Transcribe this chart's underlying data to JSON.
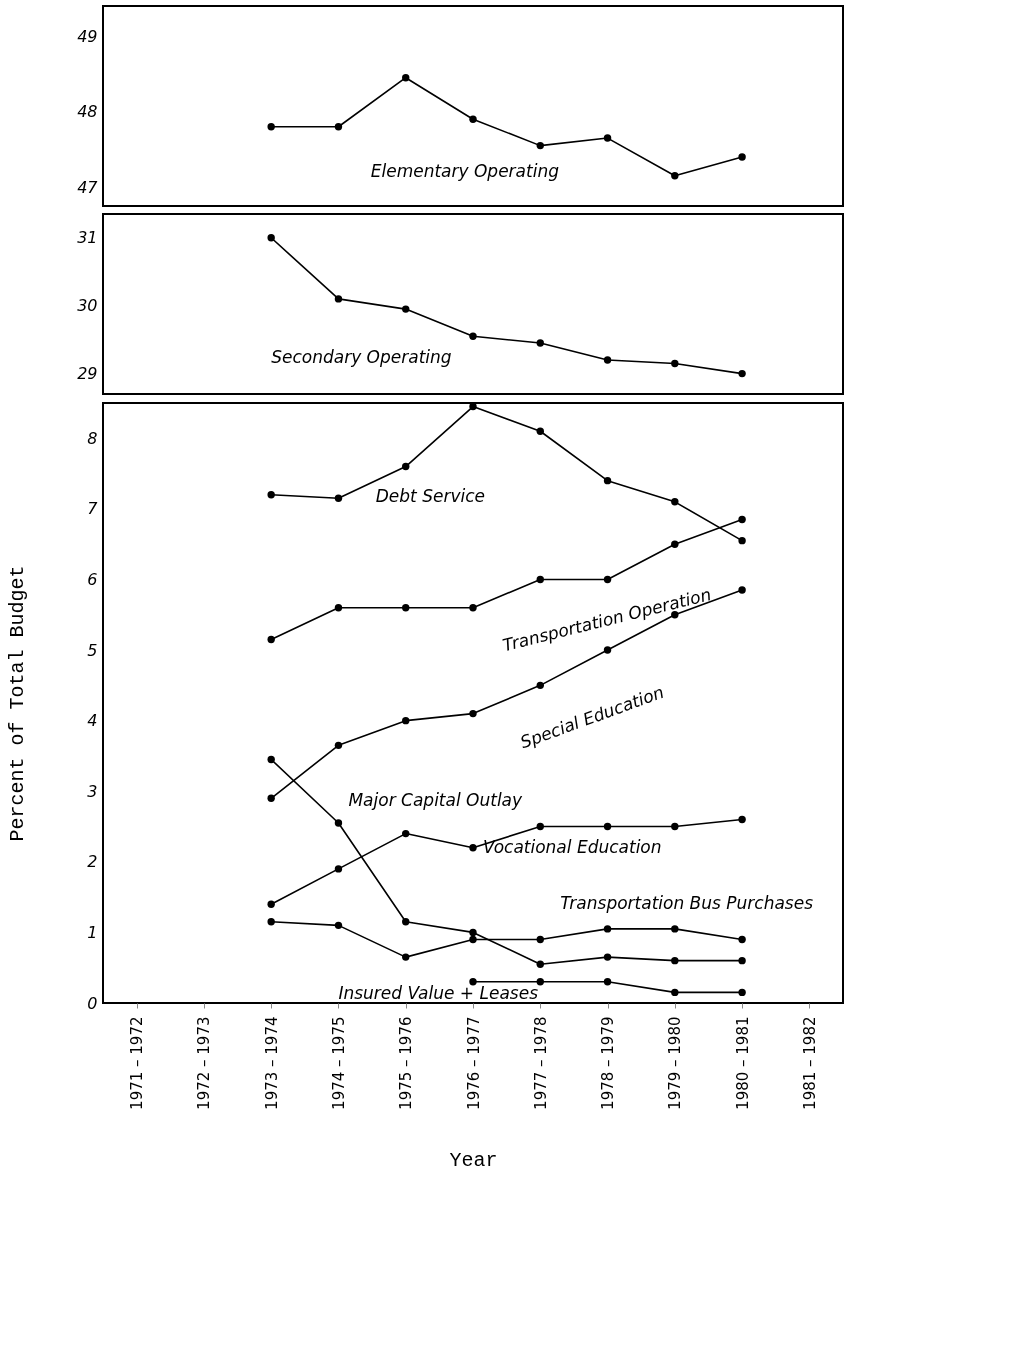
{
  "chart_data": [
    {
      "type": "line",
      "categories": [
        "1971 – 1972",
        "1972 – 1973",
        "1973 – 1974",
        "1974 – 1975",
        "1975 – 1976",
        "1976 – 1977",
        "1977 – 1978",
        "1978 – 1979",
        "1979 – 1980",
        "1980 – 1981",
        "1981 – 1982"
      ],
      "ylim": [
        46.75,
        49.4
      ],
      "yticks": [
        47,
        48,
        49
      ],
      "grid": false,
      "legend": false,
      "marker": "circle",
      "line_style": "solid",
      "tick_labels": "y",
      "series": [
        {
          "name": "Elementary Operating",
          "color": "#000000",
          "values": [
            null,
            null,
            47.8,
            47.8,
            48.45,
            47.9,
            47.55,
            47.65,
            47.15,
            47.4,
            null
          ]
        }
      ]
    },
    {
      "type": "line",
      "categories": [
        "1971 – 1972",
        "1972 – 1973",
        "1973 – 1974",
        "1974 – 1975",
        "1975 – 1976",
        "1976 – 1977",
        "1977 – 1978",
        "1978 – 1979",
        "1979 – 1980",
        "1980 – 1981",
        "1981 – 1982"
      ],
      "ylim": [
        28.7,
        31.35
      ],
      "yticks": [
        29,
        30,
        31
      ],
      "grid": false,
      "legend": false,
      "marker": "circle",
      "line_style": "solid",
      "tick_labels": "y",
      "series": [
        {
          "name": "Secondary Operating",
          "color": "#000000",
          "values": [
            null,
            null,
            31.0,
            30.1,
            29.95,
            29.55,
            29.45,
            29.2,
            29.15,
            29.0,
            null
          ]
        }
      ]
    },
    {
      "type": "line",
      "xlabel": "Year",
      "ylabel": "Percent of Total Budget",
      "categories": [
        "1971 – 1972",
        "1972 – 1973",
        "1973 – 1974",
        "1974 – 1975",
        "1975 – 1976",
        "1976 – 1977",
        "1977 – 1978",
        "1978 – 1979",
        "1979 – 1980",
        "1980 – 1981",
        "1981 – 1982"
      ],
      "ylim": [
        0,
        8.5
      ],
      "yticks": [
        0,
        1,
        2,
        3,
        4,
        5,
        6,
        7,
        8
      ],
      "grid": false,
      "legend": false,
      "marker": "circle",
      "line_style": "solid",
      "series": [
        {
          "name": "Debt Service",
          "color": "#000000",
          "values": [
            null,
            null,
            7.2,
            7.15,
            7.6,
            8.45,
            8.1,
            7.4,
            7.1,
            6.55,
            null
          ]
        },
        {
          "name": "Transportation Operation",
          "color": "#000000",
          "values": [
            null,
            null,
            5.15,
            5.6,
            5.6,
            5.6,
            6.0,
            6.0,
            6.5,
            6.85,
            null
          ]
        },
        {
          "name": "Special Education",
          "color": "#000000",
          "values": [
            null,
            null,
            2.9,
            3.65,
            4.0,
            4.1,
            4.5,
            5.0,
            5.5,
            5.85,
            null
          ]
        },
        {
          "name": "Major Capital Outlay",
          "color": "#000000",
          "values": [
            null,
            null,
            3.45,
            2.55,
            1.15,
            1.0,
            0.55,
            0.65,
            0.6,
            0.6,
            null
          ]
        },
        {
          "name": "Vocational Education",
          "color": "#000000",
          "values": [
            null,
            null,
            1.4,
            1.9,
            2.4,
            2.2,
            2.5,
            2.5,
            2.5,
            2.6,
            null
          ]
        },
        {
          "name": "Transportation Bus Purchases",
          "color": "#000000",
          "values": [
            null,
            null,
            1.15,
            1.1,
            0.65,
            0.9,
            0.9,
            1.05,
            1.05,
            0.9,
            null
          ]
        },
        {
          "name": "Insured Value + Leases",
          "color": "#000000",
          "values": [
            null,
            null,
            null,
            null,
            null,
            0.3,
            0.3,
            0.3,
            0.15,
            0.15,
            null
          ]
        }
      ]
    }
  ]
}
